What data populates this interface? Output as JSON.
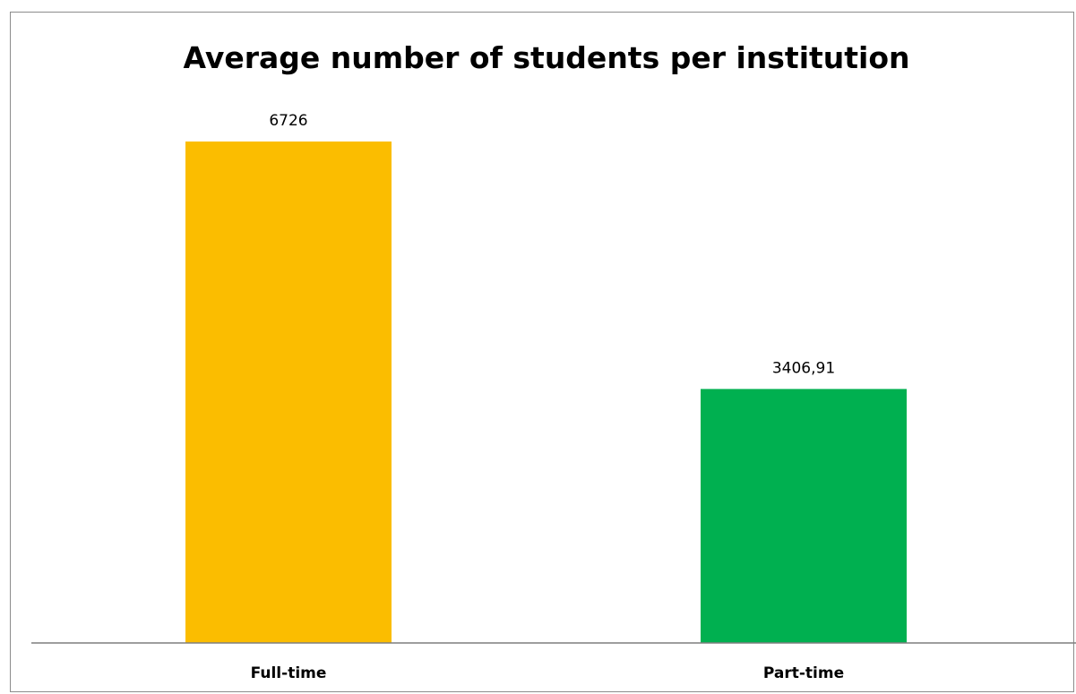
{
  "chart_data": {
    "type": "bar",
    "title": "Average number of students per institution",
    "categories": [
      "Full-time",
      "Part-time"
    ],
    "values": [
      6726,
      3406.91
    ],
    "data_labels": [
      "6726",
      "3406,91"
    ],
    "colors": [
      "#FBBD00",
      "#00B050"
    ],
    "ylim": [
      0,
      8000
    ],
    "grid": false,
    "legend": "none",
    "xlabel": "",
    "ylabel": ""
  }
}
